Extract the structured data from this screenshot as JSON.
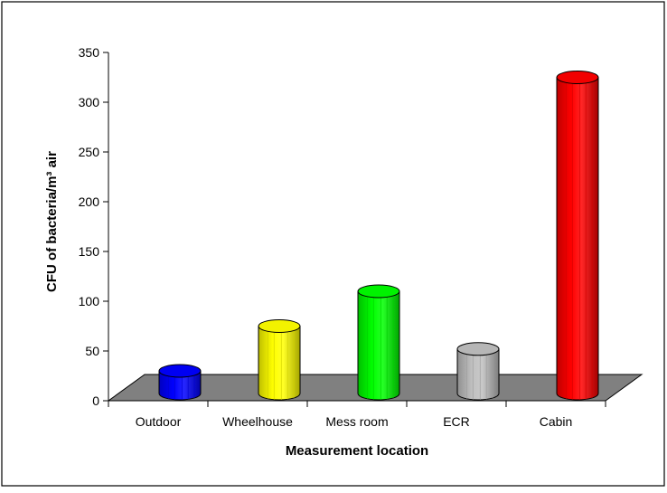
{
  "chart_data": {
    "type": "bar",
    "title": "",
    "xlabel": "Measurement location",
    "ylabel": "CFU of bacteria/m³ air",
    "categories": [
      "Outdoor",
      "Wheelhouse",
      "Mess room",
      "ECR",
      "Cabin"
    ],
    "values": [
      30,
      75,
      110,
      52,
      325
    ],
    "colors": [
      "#0000ff",
      "#ffff00",
      "#00ff00",
      "#c0c0c0",
      "#ff0000"
    ],
    "yticks": [
      0,
      50,
      100,
      150,
      200,
      250,
      300,
      350
    ],
    "ylim": [
      0,
      350
    ],
    "bar_shape": "3d-cylinder",
    "floor_color": "#808080",
    "grid": false,
    "legend": "none"
  }
}
